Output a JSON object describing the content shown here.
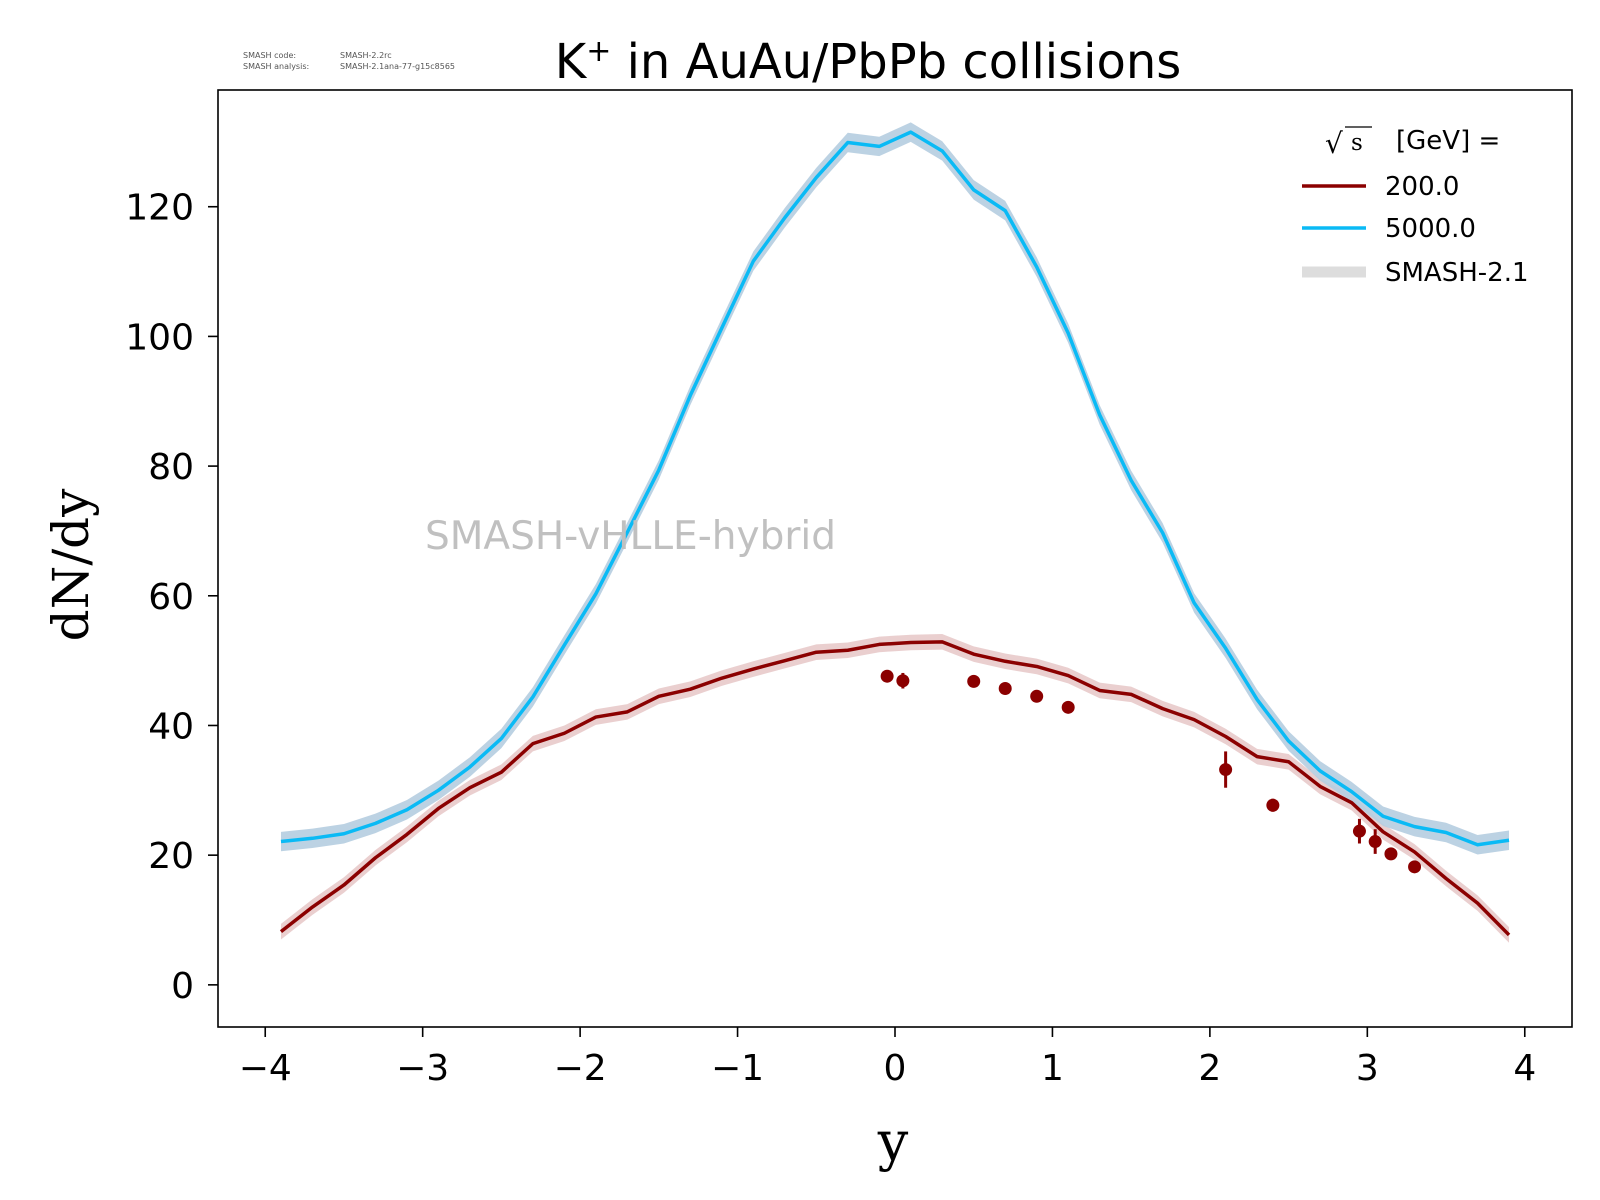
{
  "meta": {
    "code_label": "SMASH code:",
    "code_value": "SMASH-2.2rc",
    "analysis_label": "SMASH analysis:",
    "analysis_value": "SMASH-2.1ana-77-g15c8565"
  },
  "watermark": "SMASH-vHLLE-hybrid",
  "colors": {
    "series_200": "#8b0000",
    "series_5000": "#0abaf5",
    "band_200": "#e8caca",
    "band_5000": "#b5cde0",
    "legend_band": "#dddddd",
    "watermark": "#c0c0c0"
  },
  "chart_data": {
    "type": "line",
    "title_main": "K",
    "title_sup": "+",
    "title_rest": " in AuAu/PbPb collisions",
    "xlabel": "y",
    "ylabel": "dN/dy",
    "xlim": [
      -4.3,
      4.3
    ],
    "ylim": [
      -6.5,
      138
    ],
    "xticks": [
      -4,
      -3,
      -2,
      -1,
      0,
      1,
      2,
      3,
      4
    ],
    "xtick_labels": [
      "−4",
      "−3",
      "−2",
      "−1",
      "0",
      "1",
      "2",
      "3",
      "4"
    ],
    "yticks": [
      0,
      20,
      40,
      60,
      80,
      100,
      120
    ],
    "ytick_labels": [
      "0",
      "20",
      "40",
      "60",
      "80",
      "100",
      "120"
    ],
    "grid": false,
    "legend": {
      "placement": "top-right",
      "title_radical": "√",
      "title_s": "s",
      "title_rest": "[GeV] =",
      "entries": [
        "200.0",
        "5000.0",
        "SMASH-2.1"
      ]
    },
    "series": [
      {
        "name": "200.0",
        "x": [
          -3.9,
          -3.7,
          -3.5,
          -3.3,
          -3.1,
          -2.9,
          -2.7,
          -2.5,
          -2.3,
          -2.1,
          -1.9,
          -1.7,
          -1.5,
          -1.3,
          -1.1,
          -0.9,
          -0.7,
          -0.5,
          -0.3,
          -0.1,
          0.1,
          0.3,
          0.5,
          0.7,
          0.9,
          1.1,
          1.3,
          1.5,
          1.7,
          1.9,
          2.1,
          2.3,
          2.5,
          2.7,
          2.9,
          3.1,
          3.3,
          3.5,
          3.7,
          3.9
        ],
        "y": [
          8.2,
          12.0,
          15.4,
          19.6,
          23.2,
          27.2,
          30.4,
          32.8,
          37.2,
          38.8,
          41.3,
          42.1,
          44.5,
          45.6,
          47.3,
          48.7,
          50.0,
          51.3,
          51.6,
          52.5,
          52.8,
          52.9,
          51.0,
          49.9,
          49.1,
          47.7,
          45.4,
          44.8,
          42.6,
          40.9,
          38.3,
          35.2,
          34.4,
          30.6,
          28.1,
          23.6,
          20.5,
          16.4,
          12.6,
          7.7
        ],
        "band": 1.2
      },
      {
        "name": "5000.0",
        "x": [
          -3.9,
          -3.7,
          -3.5,
          -3.3,
          -3.1,
          -2.9,
          -2.7,
          -2.5,
          -2.3,
          -2.1,
          -1.9,
          -1.7,
          -1.5,
          -1.3,
          -1.1,
          -0.9,
          -0.7,
          -0.5,
          -0.3,
          -0.1,
          0.1,
          0.3,
          0.5,
          0.7,
          0.9,
          1.1,
          1.3,
          1.5,
          1.7,
          1.9,
          2.1,
          2.3,
          2.5,
          2.7,
          2.9,
          3.1,
          3.3,
          3.5,
          3.7,
          3.9
        ],
        "y": [
          22.1,
          22.6,
          23.3,
          24.9,
          27.0,
          30.0,
          33.6,
          38.0,
          44.4,
          52.4,
          60.3,
          69.8,
          79.4,
          90.9,
          101.3,
          111.6,
          118.3,
          124.5,
          129.9,
          129.3,
          131.5,
          128.6,
          122.6,
          119.4,
          110.7,
          100.5,
          87.9,
          77.8,
          69.7,
          58.9,
          51.9,
          44.0,
          37.6,
          33.0,
          29.8,
          26.0,
          24.4,
          23.5,
          21.6,
          22.3
        ],
        "band": 1.5
      }
    ],
    "data_points": [
      {
        "series": "200.0",
        "points": [
          {
            "x": -0.05,
            "y": 47.6,
            "err": 0.4
          },
          {
            "x": 0.05,
            "y": 46.9,
            "err": 1.2
          },
          {
            "x": 0.5,
            "y": 46.8,
            "err": 0.3
          },
          {
            "x": 0.7,
            "y": 45.7,
            "err": 0.3
          },
          {
            "x": 0.9,
            "y": 44.5,
            "err": 0.5
          },
          {
            "x": 1.1,
            "y": 42.8,
            "err": 0.4
          },
          {
            "x": 2.1,
            "y": 33.2,
            "err": 2.8
          },
          {
            "x": 2.4,
            "y": 27.7,
            "err": 1.0
          },
          {
            "x": 2.95,
            "y": 23.7,
            "err": 1.9
          },
          {
            "x": 3.05,
            "y": 22.1,
            "err": 1.9
          },
          {
            "x": 3.15,
            "y": 20.2,
            "err": 0.4
          },
          {
            "x": 3.3,
            "y": 18.2,
            "err": 0.3
          }
        ]
      }
    ]
  }
}
